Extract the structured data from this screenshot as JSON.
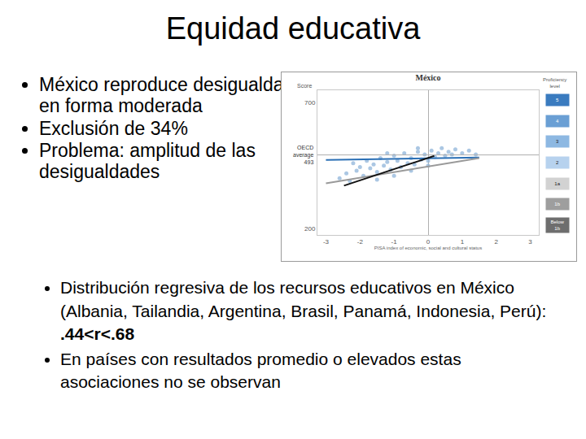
{
  "title": "Equidad educativa",
  "bullets": [
    "México reproduce desigualdad en forma moderada",
    "Exclusión de 34%",
    "Problema: amplitud de las desigualdades"
  ],
  "bottom_bullets": [
    {
      "text": "Distribución regresiva de los recursos educativos en México (Albania, Tailandia, Argentina, Brasil, Panamá, Indonesia, Perú): ",
      "emphasis": ".44<r<.68"
    },
    {
      "text": "En países con resultados promedio o elevados estas asociaciones no se observan"
    }
  ],
  "chart_data": {
    "type": "scatter",
    "title": "México",
    "x_label": "PISA index of economic, social and cultural status",
    "y_label": "Score",
    "xlim": [
      -3.25,
      3.25
    ],
    "xticks": [
      -3,
      -2,
      -1,
      0,
      1,
      2,
      3
    ],
    "ylim": [
      175,
      750
    ],
    "yticks": [
      200,
      700
    ],
    "grid": false,
    "oecd_average": {
      "label": "OECD average",
      "value": 493
    },
    "points": {
      "color": "#8fb4d9",
      "marker": "circle",
      "x": [
        -2.6,
        -2.4,
        -2.3,
        -2.1,
        -2.0,
        -1.9,
        -1.8,
        -1.7,
        -1.6,
        -1.5,
        -1.4,
        -1.3,
        -1.2,
        -1.1,
        -1.0,
        -0.9,
        -0.8,
        -0.7,
        -0.6,
        -0.5,
        -0.4,
        -0.3,
        -0.2,
        -0.1,
        0.0,
        0.1,
        0.2,
        0.3,
        0.4,
        0.5,
        0.6,
        0.7,
        0.8,
        1.0,
        1.2,
        1.4,
        -1.5,
        -1.0,
        -0.5,
        0.0,
        -2.2,
        -1.2,
        -0.3
      ],
      "values": [
        400,
        420,
        390,
        430,
        445,
        410,
        470,
        440,
        455,
        425,
        480,
        450,
        465,
        435,
        490,
        470,
        445,
        500,
        460,
        480,
        455,
        505,
        475,
        495,
        470,
        510,
        485,
        500,
        520,
        490,
        505,
        495,
        515,
        500,
        510,
        495,
        395,
        410,
        430,
        450,
        460,
        500,
        520
      ]
    },
    "series": [
      {
        "type": "line",
        "color": "#2a6fb5",
        "line_style": "solid",
        "x": [
          -3,
          1.5
        ],
        "values": [
          473,
          483
        ]
      },
      {
        "type": "line",
        "color": "#9a9a9a",
        "line_style": "solid",
        "x": [
          -3,
          1.5
        ],
        "values": [
          380,
          480
        ]
      },
      {
        "type": "line",
        "color": "#111111",
        "line_style": "solid",
        "x": [
          -2.47,
          0.18
        ],
        "values": [
          371,
          489
        ]
      }
    ],
    "proficiency": {
      "title": "Proficiency level",
      "levels": [
        "5",
        "4",
        "3",
        "2",
        "1a",
        "1b",
        "Below 1b"
      ],
      "colors": [
        "#3a7bbf",
        "#6a9fd4",
        "#8db8e2",
        "#b7d2ee",
        "#d2d2d2",
        "#9e9e9e",
        "#6e6e6e"
      ]
    }
  }
}
